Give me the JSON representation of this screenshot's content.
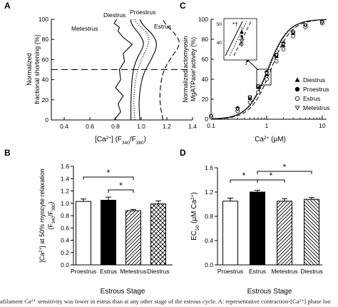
{
  "figure": {
    "caption": "afilament Ca²⁺ sensitivity was lower in estrus than at any other stage of the estrous cycle. A: representative contraction-[Ca²⁺] phase loo"
  },
  "chart_data": [
    {
      "panel": "A",
      "type": "line",
      "xlabel": "[Ca2+] (F340/F380)",
      "ylabel": "Normalized fractional shortening (%)",
      "xlim": [
        0.3,
        1.4
      ],
      "ylim": [
        0,
        100
      ],
      "xticks": [
        "0.4",
        "0.6",
        "0.8",
        "1.0",
        "1.2",
        "1.4"
      ],
      "yticks": [
        "0",
        "20",
        "40",
        "60",
        "80",
        "100"
      ],
      "reference_line_y": 50,
      "series": [
        {
          "name": "Metestrus",
          "style": "solid-jagged",
          "x": [
            0.79,
            0.84,
            0.82,
            0.86,
            0.8,
            0.84,
            0.83,
            0.87,
            0.86,
            0.93,
            0.86,
            0.82,
            0.83,
            0.79,
            0.81
          ],
          "y": [
            0,
            8,
            16,
            24,
            32,
            40,
            50,
            58,
            66,
            75,
            82,
            88,
            92,
            96,
            100
          ]
        },
        {
          "name": "Diestrus",
          "style": "solid",
          "x": [
            0.92,
            0.92,
            0.93,
            0.96,
            1.03,
            0.99,
            0.94,
            0.92,
            0.92
          ],
          "y": [
            0,
            20,
            45,
            60,
            75,
            85,
            92,
            97,
            100
          ]
        },
        {
          "name": "Diestrus",
          "style": "dotted",
          "x": [
            0.95,
            0.94,
            0.96,
            1.0,
            1.06,
            1.06,
            1.0,
            0.96,
            0.95
          ],
          "y": [
            0,
            20,
            45,
            60,
            75,
            85,
            92,
            97,
            100
          ]
        },
        {
          "name": "Proestrus",
          "style": "solid",
          "x": [
            0.99,
            0.98,
            1.01,
            1.08,
            1.13,
            1.09,
            1.03,
            1.0,
            0.99
          ],
          "y": [
            0,
            20,
            45,
            60,
            75,
            85,
            92,
            97,
            100
          ]
        },
        {
          "name": "Estrus",
          "style": "dashed",
          "x": [
            1.17,
            1.14,
            1.16,
            1.22,
            1.31,
            1.27,
            1.21,
            1.18,
            1.17
          ],
          "y": [
            0,
            20,
            45,
            60,
            75,
            85,
            92,
            97,
            100
          ]
        }
      ],
      "annotations": [
        "Metestrus",
        "Diestrus",
        "Proestrus",
        "Estrus"
      ]
    },
    {
      "panel": "B",
      "type": "bar",
      "title": "",
      "xlabel": "Estrous Stage",
      "ylabel": "[Ca2+] at 50% myocyte relaxation (F340/F380)",
      "categories": [
        "Proestrus",
        "Estrus",
        "Metestrus",
        "Diestrus"
      ],
      "values": [
        1.03,
        1.05,
        0.88,
        0.99
      ],
      "errors": [
        0.04,
        0.05,
        0.02,
        0.05
      ],
      "fills": [
        "white",
        "black",
        "diagonal-hatch",
        "cross-hatch"
      ],
      "ylim": [
        0,
        1.6
      ],
      "yticks": [
        "0.0",
        "0.2",
        "0.4",
        "0.6",
        "0.8",
        "1.0",
        "1.2",
        "1.4",
        "1.6"
      ],
      "significance": [
        {
          "from": "Proestrus",
          "to": "Metestrus",
          "label": "*"
        },
        {
          "from": "Estrus",
          "to": "Metestrus",
          "label": "*"
        }
      ]
    },
    {
      "panel": "C",
      "type": "scatter",
      "xlabel": "Ca2+ (μM)",
      "ylabel": "Normalized actomyosin MgATPase activity (%)",
      "xscale": "log",
      "xlim": [
        0.1,
        12
      ],
      "ylim": [
        0,
        100
      ],
      "xticks": [
        "0.1",
        "1",
        "10"
      ],
      "yticks": [
        "0",
        "20",
        "40",
        "60",
        "80",
        "100"
      ],
      "x": [
        0.1,
        0.3,
        0.5,
        0.7,
        1.0,
        1.5,
        2.0,
        3.0,
        5.0,
        10.0
      ],
      "series": [
        {
          "name": "Diestrus",
          "marker": "triangle-up",
          "ec50": 1.08,
          "values": [
            3,
            10,
            21,
            32,
            45,
            63,
            74,
            86,
            93,
            97
          ]
        },
        {
          "name": "Proestrus",
          "marker": "filled-circle",
          "ec50": 1.05,
          "values": [
            3,
            11,
            22,
            33,
            47,
            64,
            76,
            87,
            94,
            97
          ]
        },
        {
          "name": "Estrus",
          "marker": "open-circle",
          "ec50": 1.2,
          "values": [
            2,
            8,
            17,
            27,
            40,
            58,
            70,
            83,
            92,
            96
          ]
        },
        {
          "name": "Metestrus",
          "marker": "triangle-down",
          "ec50": 1.05,
          "values": [
            3,
            10,
            22,
            33,
            46,
            64,
            75,
            87,
            94,
            97
          ]
        }
      ],
      "legend_position": "right",
      "inset": {
        "xticks": [
          "1"
        ],
        "yticks": [
          "40",
          "50"
        ],
        "ylim": [
          32,
          55
        ],
        "annotation": "*†"
      }
    },
    {
      "panel": "D",
      "type": "bar",
      "xlabel": "Estrous Stage",
      "ylabel": "EC50 (μM Ca2+)",
      "categories": [
        "Proestrus",
        "Estrus",
        "Metestrus",
        "Diestrus"
      ],
      "values": [
        1.05,
        1.2,
        1.05,
        1.08
      ],
      "errors": [
        0.05,
        0.03,
        0.04,
        0.03
      ],
      "fills": [
        "white",
        "black",
        "diagonal-hatch",
        "diagonal-hatch-reverse"
      ],
      "ylim": [
        0,
        1.6
      ],
      "yticks": [
        "0.0",
        "0.4",
        "0.8",
        "1.2",
        "1.6"
      ],
      "significance": [
        {
          "from": "Proestrus",
          "to": "Estrus",
          "label": "*"
        },
        {
          "from": "Estrus",
          "to": "Metestrus",
          "label": "*"
        },
        {
          "from": "Estrus",
          "to": "Diestrus",
          "label": "*"
        }
      ]
    }
  ]
}
